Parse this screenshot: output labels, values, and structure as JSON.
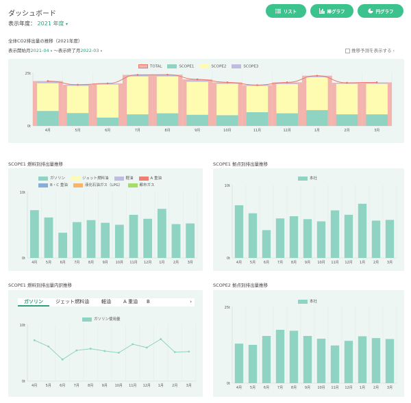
{
  "header": {
    "title": "ダッシュボード",
    "year_label": "表示年度：",
    "year_value": "2021",
    "year_suffix": "年度",
    "buttons": [
      {
        "label": "リスト",
        "icon": "list-icon"
      },
      {
        "label": "棒グラフ",
        "icon": "bar-chart-icon"
      },
      {
        "label": "円グラフ",
        "icon": "pie-chart-icon"
      }
    ]
  },
  "main_section": {
    "title": "全体CO2排出量の推移（2021年度）",
    "start_label": "表示開始月",
    "start_value": "2021-04",
    "end_label": "～表示終了月",
    "end_value": "2022-03",
    "forecast_label": "推移予測を表示する",
    "forecast_checked": false
  },
  "colors": {
    "accent": "#3cc28c",
    "total": "#f4b4ae",
    "total_line": "#e8766c",
    "scope1": "#8fd3c3",
    "scope2": "#fdfcb0",
    "scope3": "#c0bce0",
    "heavy_oil": "#ef8070",
    "bc_oil": "#86aed8",
    "lpg": "#f7b46a",
    "city_gas": "#a6dc6a"
  },
  "chart_data": [
    {
      "type": "bar",
      "title": "全体CO2排出量の推移（2021年度）",
      "categories": [
        "4月",
        "5月",
        "6月",
        "7月",
        "8月",
        "9月",
        "10月",
        "11月",
        "12月",
        "1月",
        "2月",
        "3月"
      ],
      "series": [
        {
          "name": "TOTAL",
          "values": [
            21.0,
            19.3,
            19.9,
            23.9,
            24.0,
            21.8,
            20.4,
            19.1,
            20.4,
            23.5,
            20.2,
            20.4
          ]
        },
        {
          "name": "SCOPE1",
          "values": [
            7.0,
            6.0,
            3.9,
            5.4,
            5.9,
            5.2,
            5.0,
            6.4,
            5.9,
            7.4,
            5.4,
            5.4
          ]
        },
        {
          "name": "SCOPE2",
          "values": [
            13.0,
            12.8,
            15.5,
            17.8,
            17.3,
            15.5,
            14.7,
            12.4,
            13.7,
            15.4,
            14.3,
            14.3
          ]
        },
        {
          "name": "SCOPE3",
          "values": [
            0.9,
            0.5,
            0.5,
            0.6,
            0.6,
            0.7,
            0.5,
            0.5,
            0.5,
            0.6,
            0.5,
            0.6
          ]
        }
      ],
      "y_ticks": [
        "0t",
        "25t"
      ],
      "ylim": [
        0,
        25
      ],
      "legend": [
        "TOTAL",
        "SCOPE1",
        "SCOPE2",
        "SCOPE3"
      ]
    },
    {
      "type": "bar",
      "title": "SCOPE1 燃料別排出量推移",
      "categories": [
        "4月",
        "5月",
        "6月",
        "7月",
        "8月",
        "9月",
        "10月",
        "11月",
        "12月",
        "1月",
        "2月",
        "3月"
      ],
      "series": [
        {
          "name": "ガソリン",
          "values": [
            7.2,
            6.1,
            3.8,
            5.4,
            5.7,
            5.3,
            5.0,
            6.5,
            5.9,
            7.4,
            5.1,
            5.2
          ]
        }
      ],
      "legend": [
        "ガソリン",
        "ジェット燃料油",
        "軽油",
        "A 重油",
        "B・C 重油",
        "液化石油ガス（LPG）",
        "都市ガス"
      ],
      "y_ticks": [
        "0t",
        "10t"
      ],
      "ylim": [
        0,
        10
      ]
    },
    {
      "type": "bar",
      "title": "SCOPE1 拠点別排出量推移",
      "categories": [
        "4月",
        "5月",
        "6月",
        "7月",
        "8月",
        "9月",
        "10月",
        "11月",
        "12月",
        "1月",
        "2月",
        "3月"
      ],
      "series": [
        {
          "name": "本社",
          "values": [
            7.2,
            6.1,
            3.8,
            5.4,
            5.7,
            5.3,
            5.0,
            6.5,
            5.9,
            7.4,
            5.1,
            5.2
          ]
        }
      ],
      "y_ticks": [
        "0t",
        "10t"
      ],
      "ylim": [
        0,
        10
      ]
    },
    {
      "type": "line",
      "title": "SCOPE1 燃料別排出量内訳推移",
      "categories": [
        "4月",
        "5月",
        "6月",
        "7月",
        "8月",
        "9月",
        "10月",
        "11月",
        "12月",
        "1月",
        "2月",
        "3月"
      ],
      "series": [
        {
          "name": "ガソリン使用量",
          "values": [
            7.2,
            6.1,
            3.8,
            5.4,
            5.7,
            5.3,
            5.0,
            6.5,
            5.9,
            7.4,
            5.1,
            5.2
          ]
        }
      ],
      "y_ticks": [
        "0t",
        "10t"
      ],
      "ylim": [
        0,
        10
      ]
    },
    {
      "type": "bar",
      "title": "SCOPE2 拠点別排出量推移",
      "categories": [
        "4月",
        "5月",
        "6月",
        "7月",
        "8月",
        "9月",
        "10月",
        "11月",
        "12月",
        "1月",
        "2月",
        "3月"
      ],
      "series": [
        {
          "name": "本社",
          "values": [
            12.9,
            12.5,
            15.4,
            17.4,
            17.1,
            15.4,
            14.5,
            12.3,
            13.8,
            15.3,
            14.7,
            14.4
          ]
        }
      ],
      "y_ticks": [
        "0t",
        "25t"
      ],
      "ylim": [
        0,
        25
      ]
    }
  ],
  "fuel_tabs": [
    "ガソリン",
    "ジェット燃料油",
    "軽油",
    "A 重油",
    "B"
  ],
  "fuel_tabs_next": "›"
}
